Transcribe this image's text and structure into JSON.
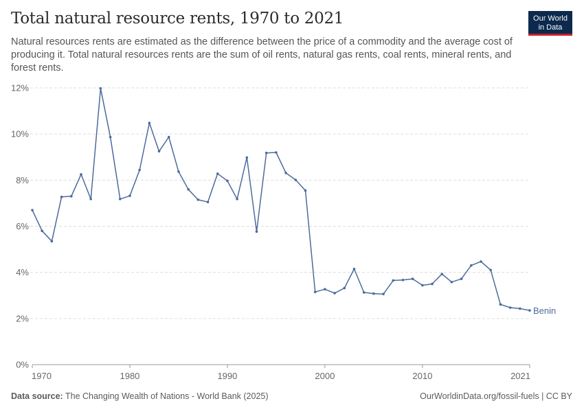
{
  "header": {
    "title": "Total natural resource rents, 1970 to 2021",
    "subtitle": "Natural resources rents are estimated as the difference between the price of a commodity and the average cost of producing it. Total natural resources rents are the sum of oil rents, natural gas rents, coal rents, mineral rents, and forest rents."
  },
  "logo": {
    "line1": "Our World",
    "line2": "in Data",
    "bg_color": "#0c2a4d",
    "accent_color": "#c7202e"
  },
  "footer": {
    "source_label": "Data source:",
    "source_text": "The Changing Wealth of Nations - World Bank (2025)",
    "link_text": "OurWorldinData.org/fossil-fuels | CC BY"
  },
  "chart_data": {
    "type": "line",
    "title": "Total natural resource rents, 1970 to 2021",
    "xlabel": "",
    "ylabel": "",
    "xlim": [
      1970,
      2021
    ],
    "ylim": [
      0,
      12
    ],
    "x_ticks": [
      1970,
      1980,
      1990,
      2000,
      2010,
      2021
    ],
    "y_ticks": [
      0,
      2,
      4,
      6,
      8,
      10,
      12
    ],
    "y_tick_labels": [
      "0%",
      "2%",
      "4%",
      "6%",
      "8%",
      "10%",
      "12%"
    ],
    "grid": true,
    "series": [
      {
        "name": "Benin",
        "color": "#4c6a9c",
        "x": [
          1970,
          1971,
          1972,
          1973,
          1974,
          1975,
          1976,
          1977,
          1978,
          1979,
          1980,
          1981,
          1982,
          1983,
          1984,
          1985,
          1986,
          1987,
          1988,
          1989,
          1990,
          1991,
          1992,
          1993,
          1994,
          1995,
          1996,
          1997,
          1998,
          1999,
          2000,
          2001,
          2002,
          2003,
          2004,
          2005,
          2006,
          2007,
          2008,
          2009,
          2010,
          2011,
          2012,
          2013,
          2014,
          2015,
          2016,
          2017,
          2018,
          2019,
          2020,
          2021
        ],
        "values": [
          6.7,
          5.8,
          5.35,
          7.27,
          7.3,
          8.25,
          7.18,
          11.98,
          9.87,
          7.18,
          7.32,
          8.44,
          10.48,
          9.25,
          9.87,
          8.37,
          7.6,
          7.15,
          7.05,
          8.28,
          7.97,
          7.18,
          8.98,
          5.77,
          9.18,
          9.2,
          8.31,
          8.01,
          7.55,
          3.15,
          3.27,
          3.1,
          3.32,
          4.15,
          3.13,
          3.08,
          3.06,
          3.65,
          3.67,
          3.72,
          3.44,
          3.5,
          3.93,
          3.58,
          3.72,
          4.3,
          4.47,
          4.1,
          2.61,
          2.47,
          2.43,
          2.35
        ]
      }
    ]
  }
}
